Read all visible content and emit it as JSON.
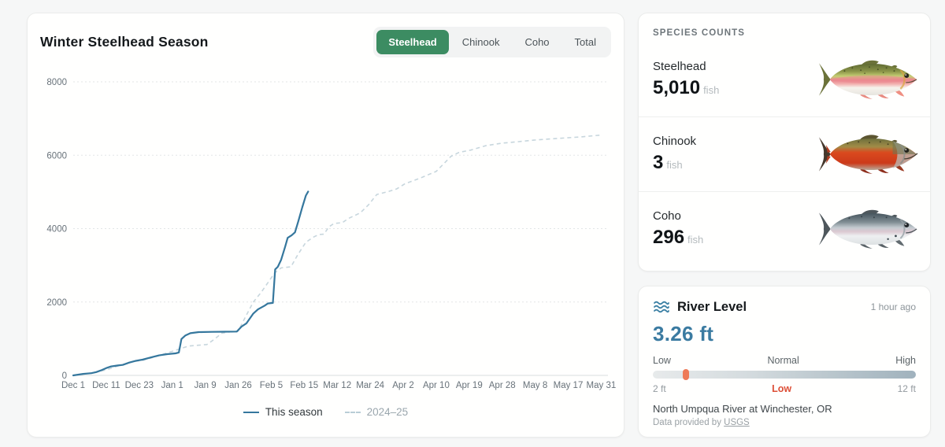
{
  "chart_card": {
    "title": "Winter Steelhead Season",
    "tabs": [
      {
        "label": "Steelhead",
        "active": true
      },
      {
        "label": "Chinook",
        "active": false
      },
      {
        "label": "Coho",
        "active": false
      },
      {
        "label": "Total",
        "active": false
      }
    ],
    "legend": [
      {
        "label": "This season",
        "style": "solid"
      },
      {
        "label": "2024–25",
        "style": "dashed"
      }
    ]
  },
  "chart_data": {
    "type": "line",
    "title": "Winter Steelhead Season",
    "x_tick_labels": [
      "Dec 1",
      "Dec 11",
      "Dec 23",
      "Jan 1",
      "Jan 9",
      "Jan 26",
      "Feb 5",
      "Feb 15",
      "Mar 12",
      "Mar 24",
      "Apr 2",
      "Apr 10",
      "Apr 19",
      "Apr 28",
      "May 8",
      "May 17",
      "May 31"
    ],
    "x_unit": "tick index, 0 = Dec 1 through 16 = May 31",
    "y_ticks": [
      0,
      2000,
      4000,
      6000,
      8000
    ],
    "ylim": [
      0,
      8000
    ],
    "grid": "horizontal dashed",
    "legend_position": "bottom-center",
    "series": [
      {
        "name": "This season",
        "style": "solid",
        "color": "#35779d",
        "points": [
          [
            0,
            0
          ],
          [
            0.3,
            40
          ],
          [
            0.55,
            60
          ],
          [
            0.7,
            90
          ],
          [
            0.85,
            140
          ],
          [
            1,
            200
          ],
          [
            1.15,
            245
          ],
          [
            1.35,
            270
          ],
          [
            1.5,
            285
          ],
          [
            1.7,
            350
          ],
          [
            1.9,
            400
          ],
          [
            2.1,
            430
          ],
          [
            2.35,
            490
          ],
          [
            2.6,
            545
          ],
          [
            2.85,
            580
          ],
          [
            3.1,
            600
          ],
          [
            3.2,
            625
          ],
          [
            3.28,
            990
          ],
          [
            3.4,
            1090
          ],
          [
            3.55,
            1150
          ],
          [
            3.8,
            1180
          ],
          [
            4.2,
            1185
          ],
          [
            4.6,
            1190
          ],
          [
            4.96,
            1195
          ],
          [
            5.1,
            1330
          ],
          [
            5.25,
            1420
          ],
          [
            5.45,
            1680
          ],
          [
            5.6,
            1800
          ],
          [
            5.8,
            1900
          ],
          [
            5.9,
            1960
          ],
          [
            6.05,
            1975
          ],
          [
            6.12,
            2890
          ],
          [
            6.2,
            2960
          ],
          [
            6.3,
            3150
          ],
          [
            6.42,
            3500
          ],
          [
            6.5,
            3750
          ],
          [
            6.62,
            3820
          ],
          [
            6.72,
            3900
          ],
          [
            6.82,
            4200
          ],
          [
            6.94,
            4580
          ],
          [
            7.05,
            4900
          ],
          [
            7.12,
            5010
          ]
        ]
      },
      {
        "name": "2024–25",
        "style": "dashed",
        "color": "#c7d6dd",
        "points": [
          [
            0,
            0
          ],
          [
            0.5,
            60
          ],
          [
            1,
            150
          ],
          [
            1.3,
            240
          ],
          [
            1.6,
            320
          ],
          [
            1.8,
            370
          ],
          [
            2.1,
            410
          ],
          [
            2.5,
            510
          ],
          [
            2.8,
            600
          ],
          [
            3.05,
            670
          ],
          [
            3.25,
            730
          ],
          [
            3.5,
            800
          ],
          [
            3.75,
            820
          ],
          [
            4.05,
            840
          ],
          [
            4.3,
            1000
          ],
          [
            4.5,
            1150
          ],
          [
            4.7,
            1180
          ],
          [
            5,
            1210
          ],
          [
            5.2,
            1560
          ],
          [
            5.45,
            1990
          ],
          [
            5.7,
            2270
          ],
          [
            5.95,
            2590
          ],
          [
            6.1,
            2790
          ],
          [
            6.3,
            2930
          ],
          [
            6.6,
            2960
          ],
          [
            6.8,
            3280
          ],
          [
            7.05,
            3630
          ],
          [
            7.3,
            3780
          ],
          [
            7.45,
            3840
          ],
          [
            7.6,
            3850
          ],
          [
            7.75,
            4050
          ],
          [
            7.9,
            4140
          ],
          [
            8.15,
            4160
          ],
          [
            8.35,
            4280
          ],
          [
            8.7,
            4430
          ],
          [
            8.95,
            4650
          ],
          [
            9.2,
            4930
          ],
          [
            9.55,
            5010
          ],
          [
            9.8,
            5080
          ],
          [
            10.05,
            5220
          ],
          [
            10.5,
            5370
          ],
          [
            11,
            5560
          ],
          [
            11.45,
            5970
          ],
          [
            11.7,
            6080
          ],
          [
            12.05,
            6140
          ],
          [
            12.5,
            6260
          ],
          [
            13,
            6330
          ],
          [
            13.5,
            6370
          ],
          [
            13.95,
            6410
          ],
          [
            14.4,
            6440
          ],
          [
            14.9,
            6470
          ],
          [
            15.4,
            6500
          ],
          [
            16,
            6550
          ]
        ]
      }
    ]
  },
  "species_panel": {
    "header": "SPECIES COUNTS",
    "items": [
      {
        "name": "Steelhead",
        "count": "5,010",
        "unit": "fish"
      },
      {
        "name": "Chinook",
        "count": "3",
        "unit": "fish"
      },
      {
        "name": "Coho",
        "count": "296",
        "unit": "fish"
      }
    ]
  },
  "river_panel": {
    "title": "River Level",
    "updated": "1 hour ago",
    "value": "3.26 ft",
    "scale_labels": {
      "left": "Low",
      "center": "Normal",
      "right": "High"
    },
    "range_labels": {
      "min": "2 ft",
      "max": "12 ft"
    },
    "status": "Low",
    "marker_percent": 12.6,
    "station": "North Umpqua River at Winchester, OR",
    "source_prefix": "Data provided by ",
    "source_link": "USGS"
  },
  "colors": {
    "active_tab": "#3c8c62",
    "series_this_season": "#35779d",
    "series_last_season": "#c7d6dd",
    "river_value": "#3b7ba1",
    "status_low": "#dd4f37",
    "gauge_marker": "#ee7a57"
  }
}
